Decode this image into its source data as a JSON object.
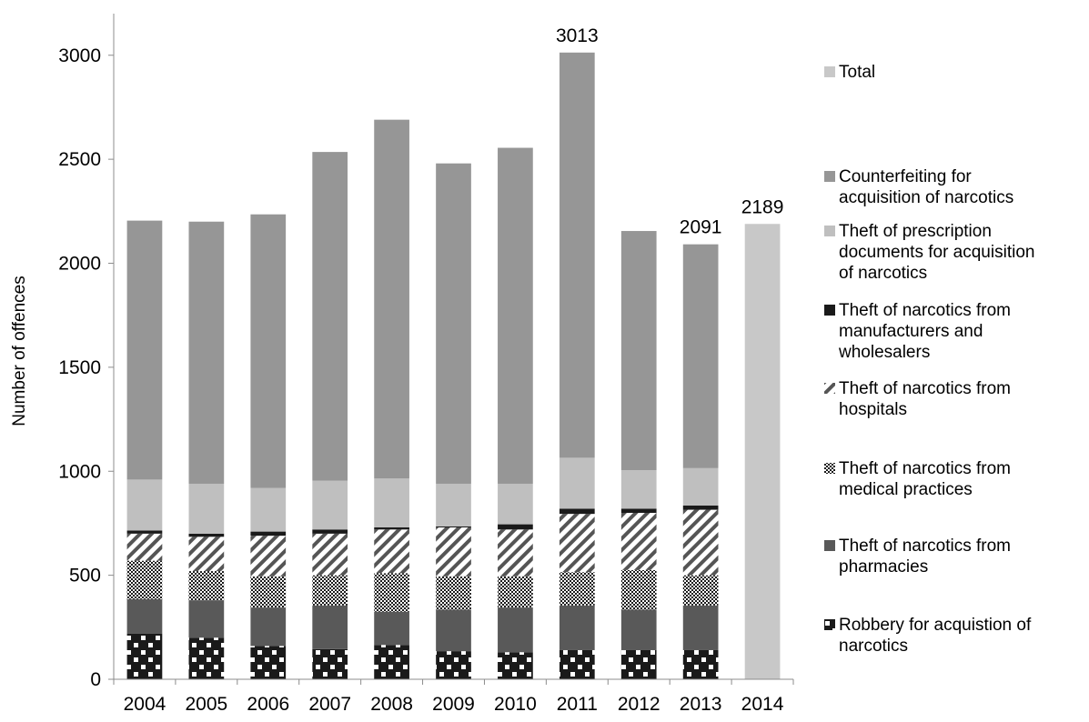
{
  "chart_data": {
    "type": "bar",
    "stacked": true,
    "title": "",
    "xlabel": "",
    "ylabel": "Number of offences",
    "ylim": [
      0,
      3200
    ],
    "yticks": [
      "0",
      "500",
      "1000",
      "1500",
      "2000",
      "2500",
      "3000"
    ],
    "grid": false,
    "legend_position": "right",
    "categories": [
      "2004",
      "2005",
      "2006",
      "2007",
      "2008",
      "2009",
      "2010",
      "2011",
      "2012",
      "2013",
      "2014"
    ],
    "series": [
      {
        "name": "Robbery for acquistion of narcotics",
        "color": "#1a1a1a",
        "pattern": "dots",
        "values": [
          220,
          200,
          160,
          145,
          165,
          135,
          130,
          140,
          140,
          140,
          0
        ]
      },
      {
        "name": "Theft of narcotics from pharmacies",
        "color": "#595959",
        "pattern": "solid",
        "values": [
          165,
          180,
          185,
          210,
          160,
          200,
          215,
          215,
          195,
          215,
          0
        ]
      },
      {
        "name": "Theft of narcotics from medical practices",
        "color": "#ffffff",
        "pattern": "fine-dots",
        "values": [
          185,
          140,
          150,
          145,
          185,
          160,
          150,
          160,
          190,
          145,
          0
        ]
      },
      {
        "name": "Theft of narcotics from hospitals",
        "color": "#ffffff",
        "pattern": "diagonal",
        "values": [
          130,
          165,
          195,
          200,
          210,
          235,
          225,
          280,
          275,
          315,
          0
        ]
      },
      {
        "name": "Theft of narcotics from manufacturers and wholesalers",
        "color": "#1a1a1a",
        "pattern": "solid",
        "values": [
          15,
          15,
          20,
          20,
          10,
          5,
          25,
          25,
          20,
          20,
          0
        ]
      },
      {
        "name": "Theft of prescription documents for acquisition of narcotics",
        "color": "#bfbfbf",
        "pattern": "solid",
        "values": [
          245,
          240,
          210,
          235,
          235,
          205,
          195,
          245,
          185,
          180,
          0
        ]
      },
      {
        "name": "Counterfeiting for acquisition of narcotics",
        "color": "#969696",
        "pattern": "solid",
        "values": [
          1245,
          1260,
          1315,
          1580,
          1725,
          1540,
          1615,
          1948,
          1150,
          1076,
          0
        ]
      },
      {
        "name": "Total",
        "color": "#c8c8c8",
        "pattern": "solid",
        "values": [
          0,
          0,
          0,
          0,
          0,
          0,
          0,
          0,
          0,
          0,
          2189
        ]
      }
    ],
    "data_labels": [
      {
        "category": "2011",
        "text": "3013",
        "value": 3013
      },
      {
        "category": "2013",
        "text": "2091",
        "value": 2091
      },
      {
        "category": "2014",
        "text": "2189",
        "value": 2189
      }
    ],
    "legend": [
      {
        "name": "Total",
        "lines": [
          "Total"
        ]
      },
      {
        "name": "Counterfeiting for acquisition of narcotics",
        "lines": [
          "Counterfeiting for",
          "acquisition of narcotics"
        ]
      },
      {
        "name": "Theft of prescription documents for acquisition of narcotics",
        "lines": [
          "Theft of prescription",
          "documents for acquisition",
          "of narcotics"
        ]
      },
      {
        "name": "Theft of narcotics from manufacturers and wholesalers",
        "lines": [
          "Theft of narcotics from",
          "manufacturers and",
          "wholesalers"
        ]
      },
      {
        "name": "Theft of narcotics from hospitals",
        "lines": [
          "Theft of narcotics from",
          "hospitals"
        ]
      },
      {
        "name": "Theft of narcotics from medical practices",
        "lines": [
          "Theft of narcotics from",
          "medical practices"
        ]
      },
      {
        "name": "Theft of narcotics from pharmacies",
        "lines": [
          "Theft of narcotics from",
          "pharmacies"
        ]
      },
      {
        "name": "Robbery for acquistion of narcotics",
        "lines": [
          "Robbery for acquistion of",
          "narcotics"
        ]
      }
    ]
  }
}
